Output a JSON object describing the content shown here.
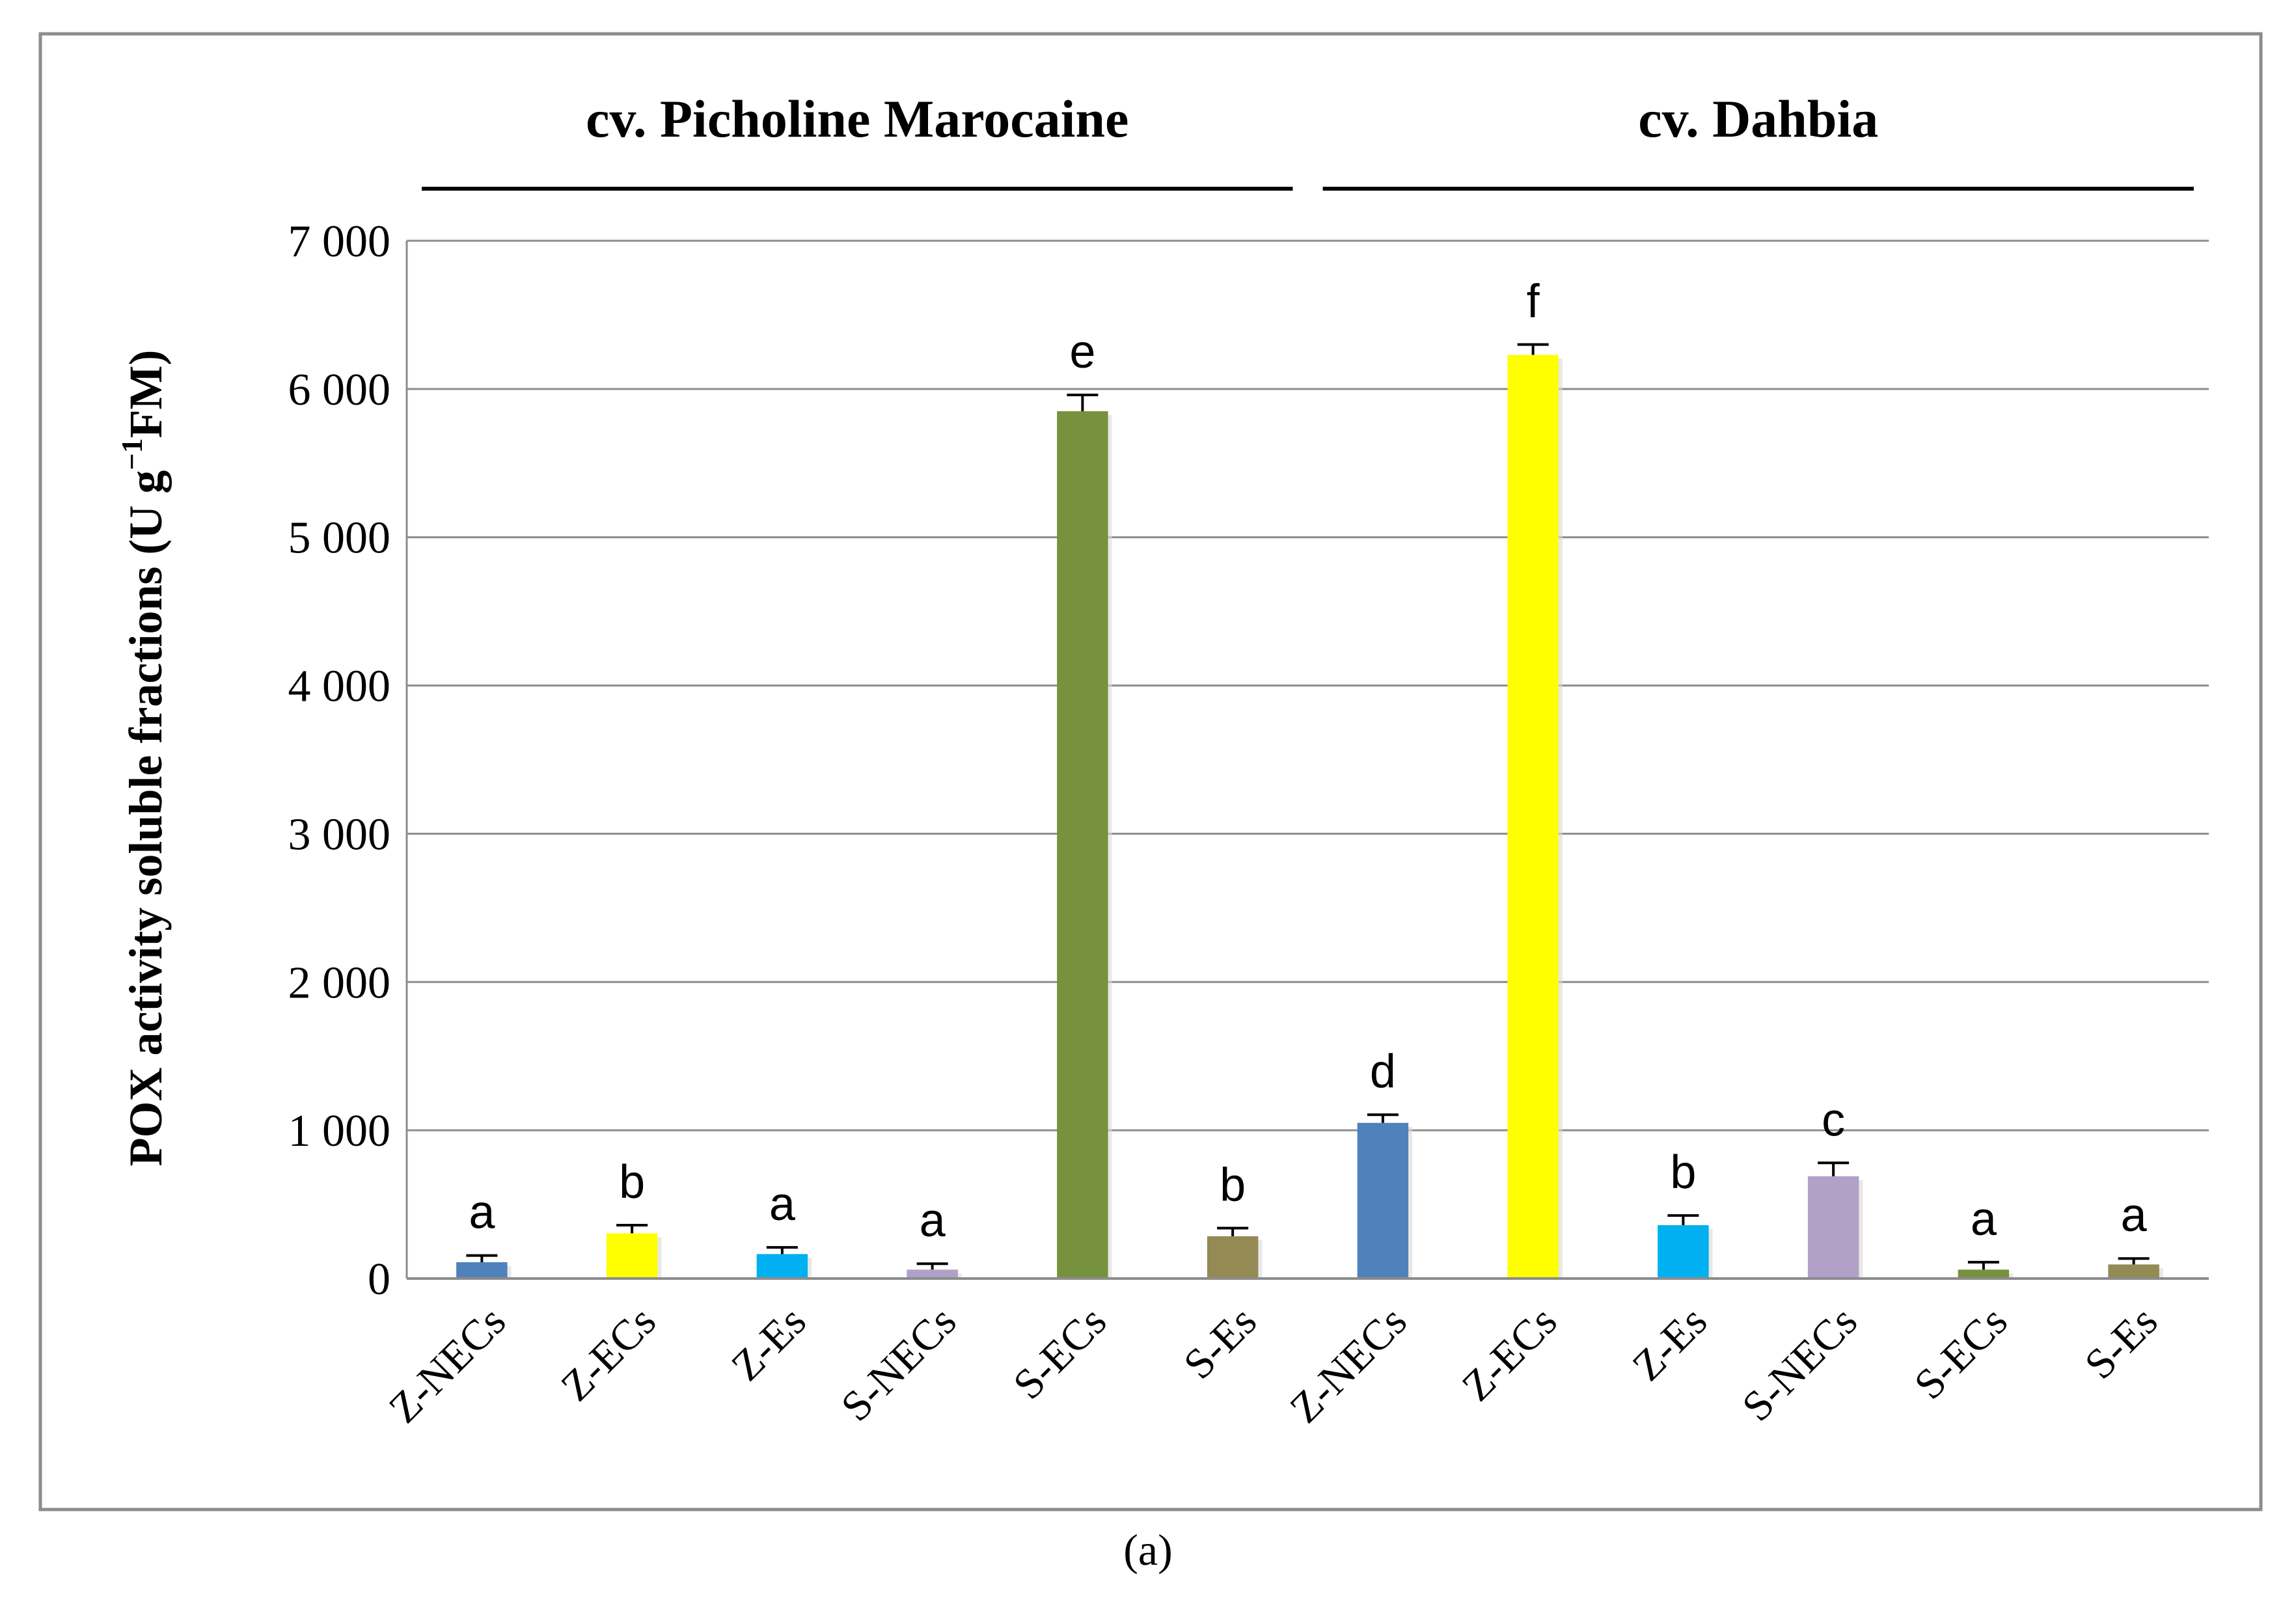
{
  "chart_data": {
    "type": "bar",
    "categories": [
      "Z-NECs",
      "Z-ECs",
      "Z-Es",
      "S-NECs",
      "S-ECs",
      "S-Es",
      "Z-NECs",
      "Z-ECs",
      "Z-Es",
      "S-NECs",
      "S-ECs",
      "S-Es"
    ],
    "values": [
      110,
      305,
      165,
      60,
      5850,
      285,
      1050,
      6230,
      360,
      690,
      60,
      95
    ],
    "errors": [
      45,
      55,
      45,
      40,
      110,
      55,
      55,
      70,
      65,
      90,
      50,
      40
    ],
    "significance_letters": [
      "a",
      "b",
      "a",
      "a",
      "e",
      "b",
      "d",
      "f",
      "b",
      "c",
      "a",
      "a"
    ],
    "bar_colors": [
      "#4f81bd",
      "#ffff00",
      "#00b0f0",
      "#b1a0c7",
      "#76923c",
      "#948a54",
      "#4f81bd",
      "#ffff00",
      "#00b0f0",
      "#b1a0c7",
      "#76923c",
      "#948a54"
    ],
    "groups": [
      {
        "label": "cv. Picholine Marocaine",
        "start": 0,
        "end": 5
      },
      {
        "label": "cv. Dahbia",
        "start": 6,
        "end": 11
      }
    ],
    "ylabel_prefix": "POX  activity soluble fractions (U g",
    "ylabel_sup": "−1",
    "ylabel_suffix": "FM)",
    "ylim": [
      0,
      7000
    ],
    "yticks": [
      0,
      1000,
      2000,
      3000,
      4000,
      5000,
      6000,
      7000
    ],
    "ytick_labels": [
      "0",
      "1 000",
      "2 000",
      "3 000",
      "4 000",
      "5 000",
      "6 000",
      "7 000"
    ],
    "grid": true,
    "panel_label": "(a)"
  }
}
